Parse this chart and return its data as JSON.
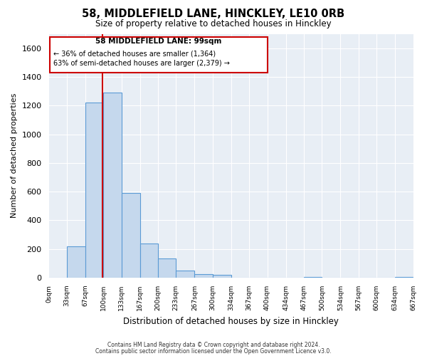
{
  "title": "58, MIDDLEFIELD LANE, HINCKLEY, LE10 0RB",
  "subtitle": "Size of property relative to detached houses in Hinckley",
  "xlabel": "Distribution of detached houses by size in Hinckley",
  "ylabel": "Number of detached properties",
  "bar_color": "#c5d8ed",
  "bar_edge_color": "#5b9bd5",
  "fig_bg_color": "#ffffff",
  "axes_bg_color": "#e8eef5",
  "grid_color": "#ffffff",
  "marker_value": 99,
  "marker_color": "#cc0000",
  "annotation_title": "58 MIDDLEFIELD LANE: 99sqm",
  "annotation_line1": "← 36% of detached houses are smaller (1,364)",
  "annotation_line2": "63% of semi-detached houses are larger (2,379) →",
  "annotation_box_color": "#ffffff",
  "annotation_box_edge": "#cc0000",
  "bin_edges": [
    0,
    33,
    67,
    100,
    133,
    167,
    200,
    233,
    267,
    300,
    334,
    367,
    400,
    434,
    467,
    500,
    534,
    567,
    600,
    634,
    667
  ],
  "bin_labels": [
    "0sqm",
    "33sqm",
    "67sqm",
    "100sqm",
    "133sqm",
    "167sqm",
    "200sqm",
    "233sqm",
    "267sqm",
    "300sqm",
    "334sqm",
    "367sqm",
    "400sqm",
    "434sqm",
    "467sqm",
    "500sqm",
    "534sqm",
    "567sqm",
    "600sqm",
    "634sqm",
    "667sqm"
  ],
  "counts": [
    0,
    220,
    1220,
    1290,
    590,
    240,
    135,
    50,
    25,
    20,
    0,
    0,
    0,
    0,
    5,
    0,
    0,
    0,
    0,
    5
  ],
  "ylim": [
    0,
    1700
  ],
  "yticks": [
    0,
    200,
    400,
    600,
    800,
    1000,
    1200,
    1400,
    1600
  ],
  "footer1": "Contains HM Land Registry data © Crown copyright and database right 2024.",
  "footer2": "Contains public sector information licensed under the Open Government Licence v3.0."
}
